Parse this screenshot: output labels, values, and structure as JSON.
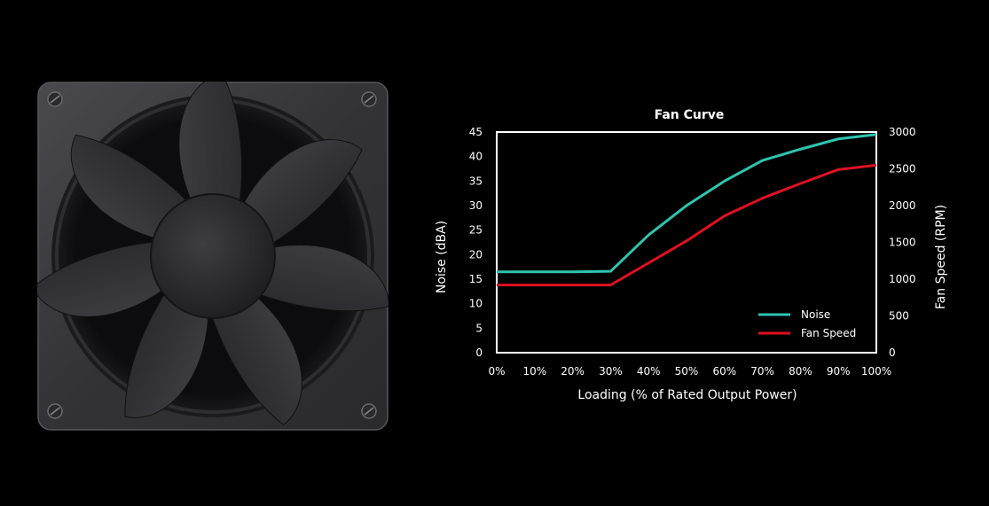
{
  "chart_data": {
    "type": "line",
    "title": "Fan Curve",
    "xlabel": "Loading (% of Rated Output Power)",
    "ylabel": "Noise (dBA)",
    "y2label": "Fan Speed (RPM)",
    "x": [
      0,
      10,
      20,
      30,
      40,
      50,
      60,
      70,
      80,
      90,
      100
    ],
    "x_tick_labels": [
      "0%",
      "10%",
      "20%",
      "30%",
      "40%",
      "50%",
      "60%",
      "70%",
      "80%",
      "90%",
      "100%"
    ],
    "xlim": [
      0,
      100
    ],
    "ylim": [
      0,
      45
    ],
    "y_ticks": [
      0,
      5,
      10,
      15,
      20,
      25,
      30,
      35,
      40,
      45
    ],
    "y2lim": [
      0,
      3000
    ],
    "y2_ticks": [
      0,
      500,
      1000,
      1500,
      2000,
      2500,
      3000
    ],
    "grid": false,
    "legend_position": "bottom-right",
    "series": [
      {
        "name": "Noise",
        "axis": "left",
        "color": "#2ec4b0",
        "values": [
          16.5,
          16.5,
          16.5,
          16.6,
          24,
          30,
          35,
          39.2,
          41.5,
          43.6,
          44.5
        ]
      },
      {
        "name": "Fan Speed",
        "axis": "right",
        "color": "#e01020",
        "values": [
          920,
          920,
          920,
          920,
          1220,
          1520,
          1860,
          2100,
          2300,
          2490,
          2550
        ]
      }
    ]
  },
  "colors": {
    "background": "#000000",
    "plot_border": "#ffffff",
    "fan_frame": "#3a3a3d"
  },
  "illustration": "case-fan-icon"
}
